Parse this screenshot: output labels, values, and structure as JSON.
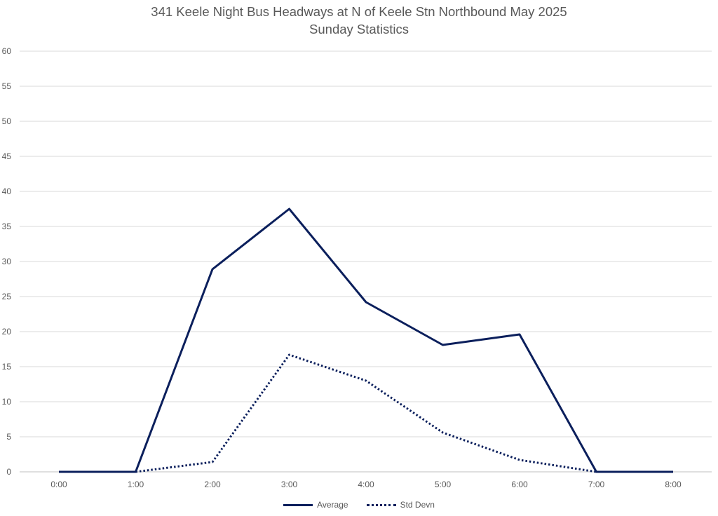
{
  "chart_data": {
    "type": "line",
    "title": "341 Keele Night Bus Headways at N of Keele Stn Northbound May 2025",
    "subtitle": "Sunday Statistics",
    "xlabel": "",
    "ylabel": "",
    "categories": [
      "0:00",
      "1:00",
      "2:00",
      "3:00",
      "4:00",
      "5:00",
      "6:00",
      "7:00",
      "8:00"
    ],
    "ylim": [
      0,
      60
    ],
    "yticks": [
      0,
      5,
      10,
      15,
      20,
      25,
      30,
      35,
      40,
      45,
      50,
      55,
      60
    ],
    "grid": true,
    "legend_position": "bottom",
    "series": [
      {
        "name": "Average",
        "values": [
          0,
          0,
          28.9,
          37.5,
          24.2,
          18.1,
          19.6,
          0,
          0
        ],
        "color": "#0b1f5c",
        "style": "solid"
      },
      {
        "name": "Std Devn",
        "values": [
          null,
          0,
          1.4,
          16.7,
          13.0,
          5.6,
          1.7,
          0,
          null
        ],
        "color": "#0b1f5c",
        "style": "dotted"
      }
    ]
  }
}
